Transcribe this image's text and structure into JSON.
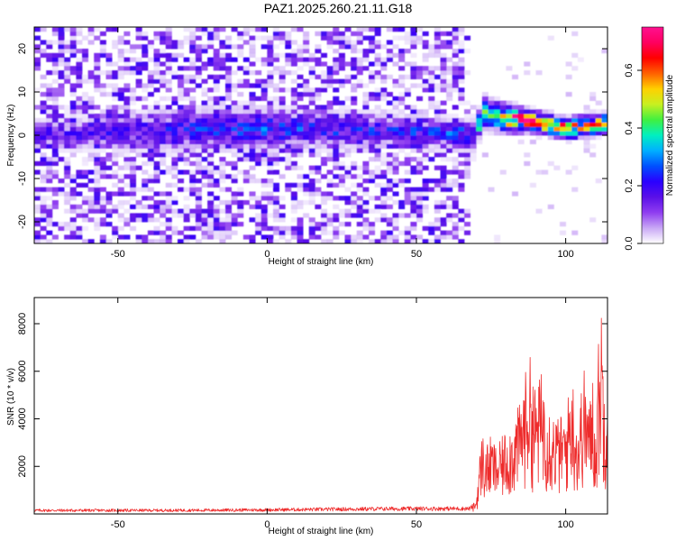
{
  "figure": {
    "title": "PAZ1.2025.260.21.11.G18"
  },
  "chart_data": [
    {
      "type": "heatmap",
      "xlabel": "Height of straight line (km)",
      "ylabel": "Frequency (Hz)",
      "xlim": [
        -78,
        114
      ],
      "ylim": [
        -25,
        25
      ],
      "x_ticks": [
        -50,
        0,
        50,
        100
      ],
      "y_ticks": [
        -20,
        -10,
        0,
        10,
        20
      ],
      "grid": false,
      "colorbar": {
        "label": "Normalized spectral amplitude",
        "range": [
          0,
          0.75
        ],
        "ticks": [
          "0.0",
          "0.2",
          "0.4",
          "0.6"
        ],
        "colormap": [
          "#ffffff",
          "#c9a8f5",
          "#8f3df0",
          "#5a10e8",
          "#2a00ff",
          "#0050ff",
          "#00b0ff",
          "#00f0c0",
          "#40f040",
          "#c8f020",
          "#ffd000",
          "#ff6000",
          "#ff0000",
          "#ff0060",
          "#ff1090"
        ]
      },
      "noise_region": {
        "x": [
          -78,
          68
        ],
        "y": [
          -25,
          25
        ],
        "amplitude": [
          0.02,
          0.2
        ]
      },
      "signal_band": {
        "x": [
          -78,
          -60,
          -40,
          -20,
          0,
          20,
          40,
          60,
          68,
          72,
          80,
          90,
          100,
          114
        ],
        "center_freq": [
          0,
          0.5,
          1,
          1.5,
          1.5,
          1.5,
          1,
          0.5,
          0,
          5,
          4,
          3,
          1.5,
          3
        ],
        "half_width": [
          3,
          3,
          4,
          4,
          4,
          3.5,
          3,
          3,
          3,
          3,
          2.5,
          2,
          2,
          2
        ],
        "amplitude": [
          0.15,
          0.15,
          0.18,
          0.2,
          0.22,
          0.2,
          0.2,
          0.22,
          0.25,
          0.4,
          0.6,
          0.55,
          0.55,
          0.45
        ]
      }
    },
    {
      "type": "line",
      "xlabel": "Height of straight line (km)",
      "ylabel": "SNR (10 * v/v)",
      "xlim": [
        -78,
        114
      ],
      "ylim": [
        0,
        9100
      ],
      "x_ticks": [
        -50,
        0,
        50,
        100
      ],
      "y_ticks": [
        2000,
        4000,
        6000,
        8000
      ],
      "grid": false,
      "series": [
        {
          "color": "#ee2b2b",
          "x": [
            -78,
            -60,
            -40,
            -20,
            0,
            20,
            40,
            60,
            68,
            70,
            71,
            72,
            73,
            75,
            77,
            80,
            82,
            85,
            87,
            88,
            90,
            92,
            95,
            97,
            100,
            102,
            104,
            106,
            108,
            109,
            110,
            111,
            112,
            113,
            114
          ],
          "envelope": [
            200,
            200,
            200,
            210,
            230,
            260,
            290,
            300,
            300,
            600,
            2200,
            3600,
            2800,
            3300,
            2800,
            3600,
            3900,
            4800,
            6400,
            6700,
            5200,
            6100,
            4500,
            4100,
            4200,
            6200,
            3800,
            6300,
            4500,
            6400,
            3500,
            7400,
            9100,
            5600,
            7000
          ]
        }
      ]
    }
  ]
}
